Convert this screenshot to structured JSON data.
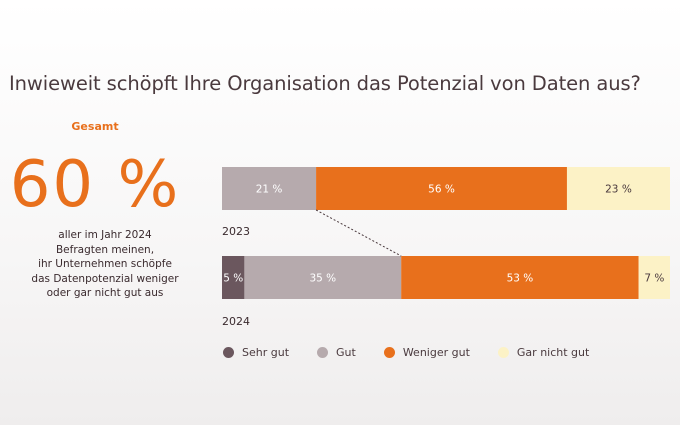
{
  "title": "Inwieweit schöpft Ihre Organisation das Potenzial von Daten aus?",
  "kpi": {
    "label": "Gesamt",
    "value": "60 %",
    "text_lines": [
      "aller im Jahr 2024",
      "Befragten meinen,",
      "ihr Unternehmen schöpfe",
      "das Datenpotenzial weniger",
      "oder gar nicht gut aus"
    ]
  },
  "chart_data": {
    "type": "bar",
    "orientation": "horizontal",
    "stacked": true,
    "normalized_percent": true,
    "categories": [
      "2023",
      "2024"
    ],
    "series": [
      {
        "name": "Sehr gut",
        "color": "#6b575e",
        "values": [
          0,
          5
        ],
        "labels": [
          "",
          "5 %"
        ]
      },
      {
        "name": "Gut",
        "color": "#b6aaad",
        "values": [
          21,
          35
        ],
        "labels": [
          "21 %",
          "35 %"
        ]
      },
      {
        "name": "Weniger gut",
        "color": "#e8701c",
        "values": [
          56,
          53
        ],
        "labels": [
          "56 %",
          "53 %"
        ]
      },
      {
        "name": "Gar nicht gut",
        "color": "#fcf2c6",
        "values": [
          23,
          7
        ],
        "labels": [
          "23 %",
          "7 %"
        ]
      }
    ],
    "xlim": [
      0,
      100
    ],
    "grid": false,
    "legend": "bottom",
    "annotation": "dashed connector between the end of the positive share in 2023 and 2024"
  }
}
